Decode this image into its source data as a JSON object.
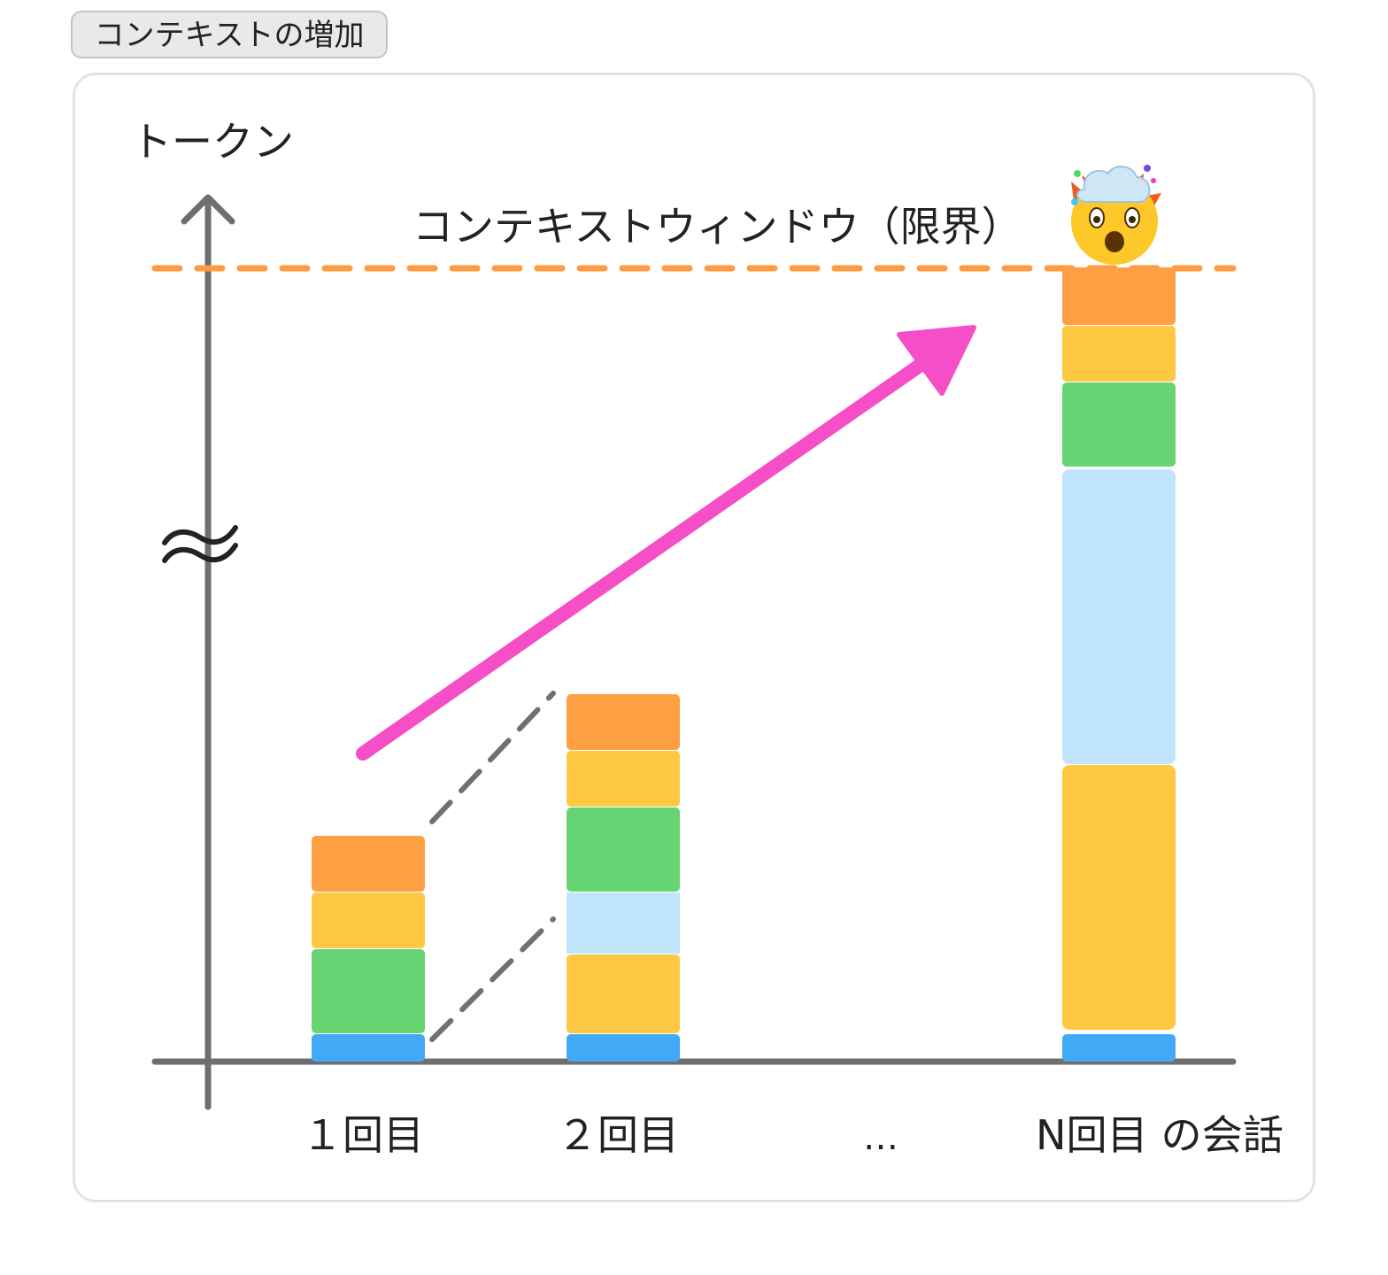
{
  "header": {
    "tag_label": "コンテキストの増加"
  },
  "diagram": {
    "y_axis_label": "トークン",
    "axis_break_symbol": "≈",
    "limit_label": "コンテキストウィンドウ（限界）",
    "limit_emoji": "🤯",
    "x_labels": [
      "１回目",
      "２回目",
      "…",
      "N回目 の会話"
    ],
    "colors": {
      "blue": "#42a9f7",
      "green": "#67d474",
      "yellow": "#fec842",
      "orange": "#fe9f43",
      "lightblue": "#c1e4fd",
      "axis": "#6e6e6e",
      "limit_line": "#fe9a42",
      "arrow": "#f64ec7",
      "connector": "#707070"
    },
    "bars": [
      {
        "name": "turn-1",
        "segments": [
          "blue",
          "green",
          "yellow",
          "orange"
        ]
      },
      {
        "name": "turn-2",
        "segments": [
          "blue",
          "yellow",
          "lightblue",
          "green",
          "yellow",
          "orange"
        ]
      },
      {
        "name": "turn-n",
        "segments": [
          "blue",
          "yellow",
          "lightblue",
          "green",
          "yellow",
          "orange"
        ]
      }
    ]
  }
}
